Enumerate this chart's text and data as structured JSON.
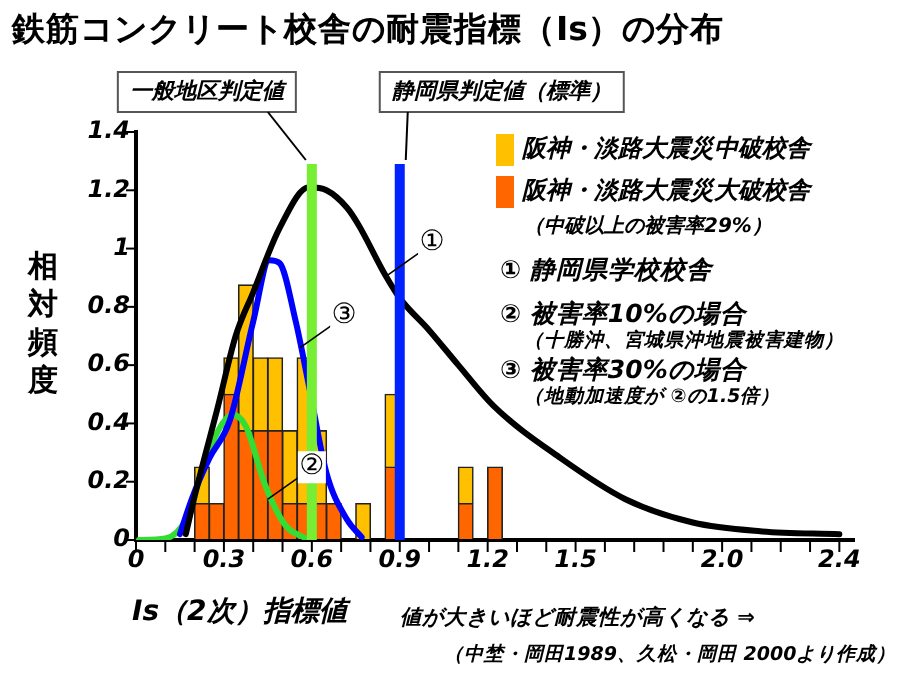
{
  "chart_data": {
    "type": "bar",
    "title": "鉄筋コンクリート校舎の耐震指標（Is）の分布",
    "xlabel": "Is（2次）指標値",
    "ylabel": "相対頻度",
    "x": [
      0.225,
      0.275,
      0.325,
      0.375,
      0.425,
      0.475,
      0.525,
      0.575,
      0.625,
      0.675,
      0.775,
      0.875,
      1.125,
      1.225
    ],
    "series": [
      {
        "name": "阪神・淡路大震災大破校舎",
        "color": "#ff6600",
        "values": [
          0.125,
          0.125,
          0.5,
          0.375,
          0.375,
          0.375,
          0.125,
          0.125,
          0.125,
          0.125,
          0,
          0.25,
          0.125,
          0.25
        ]
      },
      {
        "name": "阪神・淡路大震災中破校舎",
        "color": "#ffc000",
        "values": [
          0.125,
          0,
          0.125,
          0.5,
          0.25,
          0.25,
          0.25,
          0.5,
          0.25,
          0,
          0.125,
          0.25,
          0.125,
          0
        ]
      },
      {
        "type": "line",
        "color": "#000000",
        "x": [
          0.17,
          0.2,
          0.28,
          0.34,
          0.4,
          0.49,
          0.59,
          0.65,
          0.72,
          0.76,
          0.85,
          0.9,
          1.0,
          1.1,
          1.22,
          1.45,
          1.67,
          1.9,
          2.13,
          2.4
        ],
        "values": [
          0.02,
          0.15,
          0.46,
          0.7,
          0.85,
          1.07,
          1.21,
          1.2,
          1.14,
          1.08,
          0.91,
          0.83,
          0.72,
          0.6,
          0.46,
          0.28,
          0.14,
          0.06,
          0.03,
          0.02
        ]
      },
      {
        "type": "line",
        "color": "#0000ff",
        "x": [
          0.15,
          0.19,
          0.25,
          0.32,
          0.4,
          0.455,
          0.49,
          0.545,
          0.59,
          0.65,
          0.72,
          0.77
        ],
        "values": [
          0.02,
          0.14,
          0.28,
          0.41,
          0.75,
          0.96,
          0.95,
          0.75,
          0.53,
          0.23,
          0.07,
          0.01
        ]
      },
      {
        "type": "line",
        "color": "#33dd33",
        "x": [
          0.01,
          0.1,
          0.17,
          0.24,
          0.295,
          0.33,
          0.375,
          0.44,
          0.51,
          0.58
        ],
        "values": [
          0,
          0.005,
          0.07,
          0.28,
          0.4,
          0.43,
          0.39,
          0.19,
          0.05,
          0.005
        ]
      }
    ],
    "stacked": true,
    "xlim": [
      0,
      2.45
    ],
    "ylim": [
      0,
      1.4
    ],
    "xticks": [
      0,
      {
        "value": 0.1,
        "label": null
      },
      {
        "value": 0.2,
        "label": null
      },
      0.3,
      {
        "value": 0.4,
        "label": null
      },
      {
        "value": 0.5,
        "label": null
      },
      0.6,
      {
        "value": 0.7,
        "label": null
      },
      {
        "value": 0.8,
        "label": null
      },
      0.9,
      {
        "value": 1.0,
        "label": null
      },
      {
        "value": 1.1,
        "label": null
      },
      1.2,
      {
        "value": 1.3,
        "label": null
      },
      {
        "value": 1.4,
        "label": null
      },
      1.5,
      {
        "value": 1.6,
        "label": null
      },
      {
        "value": 1.7,
        "label": null
      },
      {
        "value": 1.8,
        "label": null
      },
      {
        "value": 1.9,
        "label": null
      },
      {
        "value": 2.0,
        "label": "2.0"
      },
      {
        "value": 2.1,
        "label": null
      },
      {
        "value": 2.2,
        "label": null
      },
      {
        "value": 2.3,
        "label": null
      },
      2.4
    ],
    "yticks": [
      0,
      0.2,
      0.4,
      0.6,
      0.8,
      1,
      1.2,
      1.4
    ],
    "grid": false,
    "legend": "top right",
    "marker": "none",
    "ref_lines": [
      {
        "axis": "x",
        "value": 0.6,
        "label": "一般地区判定値",
        "color": "#77ee33"
      },
      {
        "axis": "x",
        "value": 0.9,
        "label": "静岡県判定値（標準）",
        "color": "#0022ff"
      }
    ],
    "annotations": [
      "（中破以上の被害率29%）",
      "① 静岡県学校校舎",
      "② 被害率10%の場合",
      "（十勝沖、宮城県沖地震被害建物）",
      "③ 被害率30%の場合",
      "（地動加速度が ②の1.5倍）",
      "値が大きいほど耐震性が高くなる ⇒",
      "（中埜・岡田1989、久松・岡田 2000より作成）",
      {
        "text": "①",
        "x": 0.86,
        "y": 0.91
      },
      {
        "text": "③",
        "x": 0.56,
        "y": 0.66
      },
      {
        "text": "②",
        "x": 0.45,
        "y": 0.14
      }
    ]
  }
}
